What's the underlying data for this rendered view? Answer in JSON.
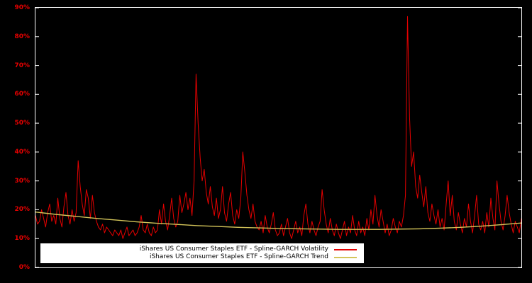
{
  "colors": {
    "background": "#000000",
    "frame": "#ffffff",
    "volatility": "#e60000",
    "trend": "#d4c55a",
    "tick_label": "#e60000",
    "legend_background": "#ffffff",
    "legend_text": "#000000"
  },
  "chart_data": {
    "type": "line",
    "title": "",
    "xlabel": "",
    "ylabel": "",
    "ylim": [
      0,
      90
    ],
    "grid": false,
    "legend_position": "bottom-left-inside",
    "y_ticks": [
      {
        "value": 0,
        "label": "0%"
      },
      {
        "value": 10,
        "label": "10%"
      },
      {
        "value": 20,
        "label": "20%"
      },
      {
        "value": 30,
        "label": "30%"
      },
      {
        "value": 40,
        "label": "40%"
      },
      {
        "value": 50,
        "label": "50%"
      },
      {
        "value": 60,
        "label": "60%"
      },
      {
        "value": 70,
        "label": "70%"
      },
      {
        "value": 80,
        "label": "80%"
      },
      {
        "value": 90,
        "label": "90%"
      }
    ],
    "series": [
      {
        "name": "iShares US Consumer Staples ETF - Spline-GARCH Volatility",
        "color": "#e60000",
        "width": 1,
        "values": [
          18,
          15,
          16,
          20,
          17,
          14,
          19,
          22,
          16,
          18,
          15,
          24,
          17,
          14,
          21,
          26,
          18,
          15,
          20,
          16,
          19,
          37,
          28,
          22,
          18,
          27,
          24,
          17,
          25,
          19,
          16,
          14,
          13,
          15,
          12,
          14,
          13,
          12,
          11,
          13,
          12,
          11,
          13,
          10,
          12,
          14,
          11,
          12,
          13,
          11,
          12,
          14,
          18,
          13,
          12,
          15,
          12,
          11,
          14,
          12,
          13,
          20,
          15,
          22,
          16,
          13,
          18,
          24,
          17,
          14,
          16,
          25,
          19,
          22,
          26,
          20,
          24,
          18,
          30,
          67,
          50,
          38,
          30,
          34,
          26,
          22,
          28,
          21,
          18,
          24,
          17,
          20,
          28,
          19,
          16,
          22,
          26,
          18,
          15,
          20,
          17,
          24,
          40,
          33,
          25,
          20,
          17,
          22,
          16,
          14,
          13,
          16,
          12,
          18,
          14,
          12,
          15,
          19,
          13,
          11,
          12,
          15,
          11,
          14,
          17,
          12,
          10,
          13,
          16,
          12,
          14,
          11,
          18,
          22,
          15,
          12,
          16,
          13,
          11,
          14,
          16,
          27,
          20,
          15,
          12,
          17,
          13,
          11,
          15,
          12,
          10,
          13,
          16,
          11,
          14,
          12,
          18,
          13,
          11,
          16,
          12,
          14,
          11,
          17,
          13,
          20,
          15,
          25,
          18,
          14,
          20,
          16,
          12,
          15,
          11,
          13,
          17,
          14,
          12,
          16,
          14,
          18,
          25,
          87,
          52,
          35,
          40,
          28,
          24,
          32,
          26,
          21,
          28,
          19,
          16,
          22,
          18,
          15,
          20,
          14,
          17,
          13,
          22,
          30,
          18,
          25,
          16,
          13,
          19,
          15,
          12,
          17,
          14,
          22,
          16,
          12,
          18,
          25,
          15,
          13,
          16,
          12,
          19,
          14,
          24,
          17,
          13,
          30,
          22,
          16,
          13,
          18,
          25,
          19,
          15,
          12,
          16,
          14,
          12,
          17
        ]
      },
      {
        "name": "iShares US Consumer Staples ETF - Spline-GARCH Trend",
        "color": "#d4c55a",
        "width": 1.4,
        "values": [
          19.2,
          18.4,
          17.7,
          17.0,
          16.4,
          15.8,
          15.3,
          14.9,
          14.5,
          14.2,
          13.9,
          13.7,
          13.5,
          13.4,
          13.3,
          13.2,
          13.2,
          13.2,
          13.3,
          13.4,
          13.6,
          13.9,
          14.3,
          14.8,
          15.4
        ]
      }
    ]
  }
}
